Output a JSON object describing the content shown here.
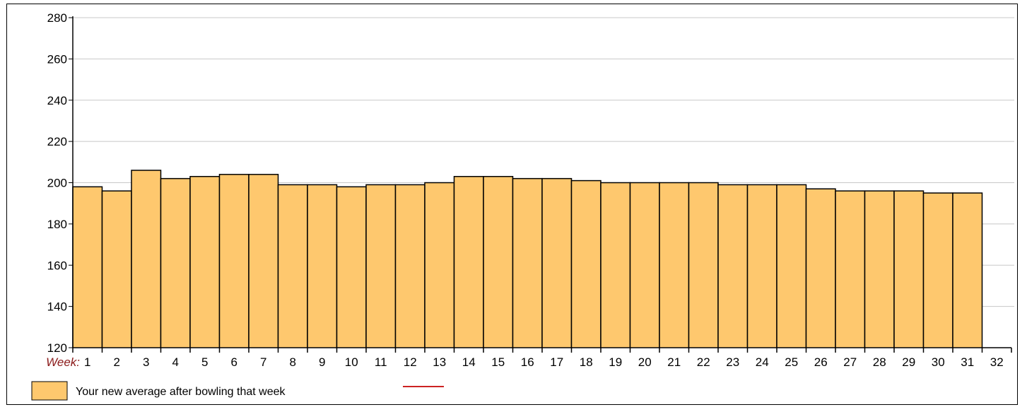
{
  "chart_data": {
    "type": "bar",
    "xlabel": "Week:",
    "categories": [
      "1",
      "2",
      "3",
      "4",
      "5",
      "6",
      "7",
      "8",
      "9",
      "10",
      "11",
      "12",
      "13",
      "14",
      "15",
      "16",
      "17",
      "18",
      "19",
      "20",
      "21",
      "22",
      "23",
      "24",
      "25",
      "26",
      "27",
      "28",
      "29",
      "30",
      "31",
      "32"
    ],
    "series": [
      {
        "name": "Your new average after bowling that week",
        "color": "#fec86e",
        "values": [
          198,
          196,
          206,
          202,
          203,
          204,
          204,
          199,
          199,
          198,
          199,
          199,
          200,
          203,
          203,
          202,
          202,
          201,
          200,
          200,
          200,
          200,
          199,
          199,
          199,
          197,
          196,
          196,
          196,
          195,
          195,
          120
        ]
      }
    ],
    "yticks": [
      120,
      140,
      160,
      180,
      200,
      220,
      240,
      260,
      280
    ],
    "ylim": [
      120,
      280
    ],
    "grid": true,
    "legend": {
      "position": "bottom-left",
      "items": [
        {
          "label": "Your new average after bowling that week",
          "color": "#fec86e",
          "kind": "box"
        },
        {
          "label": "",
          "color": "#cc2222",
          "kind": "line"
        }
      ]
    },
    "colors": {
      "bar_fill": "#fec86e",
      "bar_stroke": "#000000",
      "grid": "#c8c8c8",
      "week_label": "#8b1a1a",
      "legend_line": "#cc2222"
    }
  }
}
